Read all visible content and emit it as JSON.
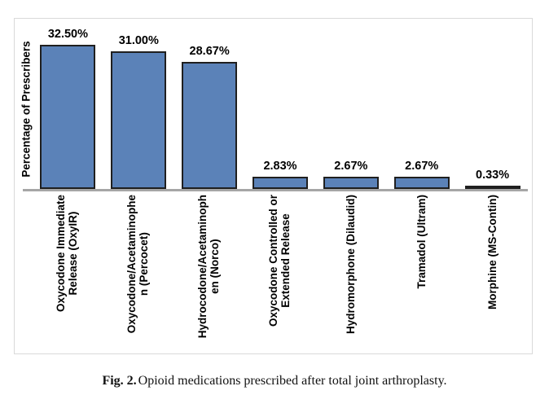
{
  "figure": {
    "caption_label": "Fig. 2.",
    "caption_text": "Opioid medications prescribed after total joint arthroplasty."
  },
  "chart_data": {
    "type": "bar",
    "title": "",
    "ylabel": "Percentage of Prescribers",
    "xlabel": "",
    "ylim": [
      0,
      38
    ],
    "grid": false,
    "legend": "none",
    "bar_color": "#5B82B8",
    "bar_border_color": "#1F1F1F",
    "axis_line_color": "#A6A6A6",
    "frame_border_color": "#D9D9D9",
    "categories": [
      "Oxycodone Immediate\nRelease (OxyIR)",
      "Oxycodone/Acetaminophe\nn (Percocet)",
      "Hydrocodone/Acetaminoph\nen (Norco)",
      "Oxycodone Controlled or\nExtended Release",
      "Hydromorphone (Dilaudid)",
      "Tramadol (Ultram)",
      "Morphine (MS-Contin)"
    ],
    "values": [
      32.5,
      31.0,
      28.67,
      2.83,
      2.67,
      2.67,
      0.33
    ],
    "value_labels": [
      "32.50%",
      "31.00%",
      "28.67%",
      "2.83%",
      "2.67%",
      "2.67%",
      "0.33%"
    ]
  }
}
